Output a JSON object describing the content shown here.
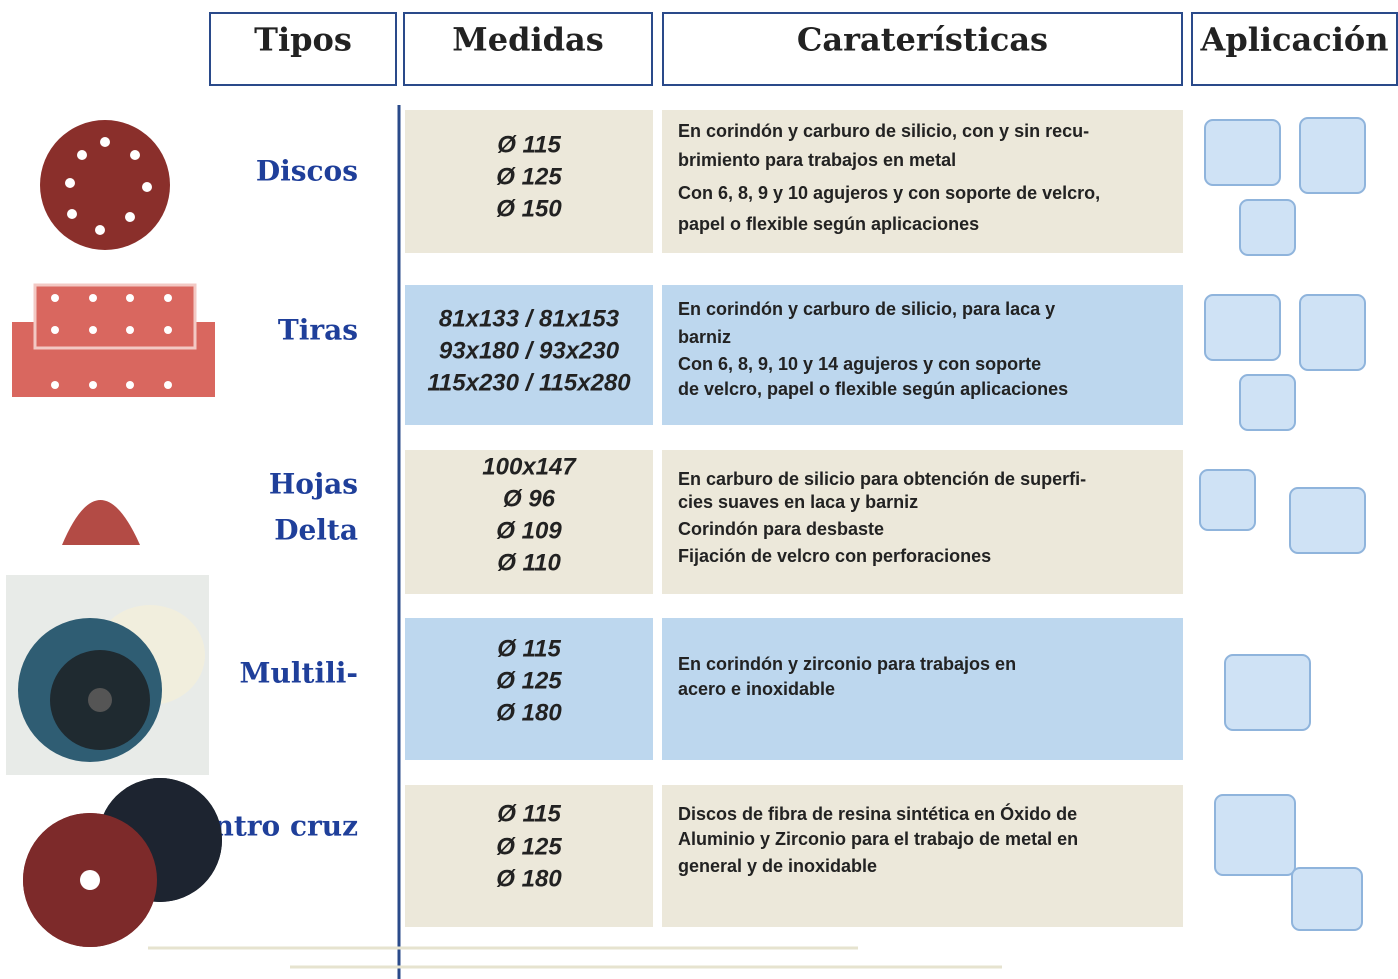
{
  "headers": [
    "Tipos",
    "Medidas",
    "Caraterísticas",
    "Aplicación"
  ],
  "rows": [
    {
      "type": [
        "Discos"
      ],
      "sizes": [
        "Ø 115",
        "Ø 125",
        "Ø 150"
      ],
      "features": [
        "En corindón y carburo de silicio, con y sin recu-",
        "brimiento para trabajos en metal",
        "Con 6, 8, 9 y 10 agujeros  y con soporte de velcro,",
        "papel o flexible según aplicaciones"
      ]
    },
    {
      "type": [
        "Tiras"
      ],
      "sizes": [
        "81x133 / 81x153",
        "93x180 / 93x230",
        "115x230 / 115x280"
      ],
      "features": [
        "En corindón y carburo de silicio, para laca y",
        "barniz",
        "Con 6, 8, 9,  10 y 14 agujeros  y con soporte",
        "de velcro, papel o flexible según aplicaciones"
      ]
    },
    {
      "type": [
        "Hojas",
        "Delta"
      ],
      "sizes": [
        "100x147",
        "Ø 96",
        "Ø 109",
        "Ø 110"
      ],
      "features": [
        "En carburo de silicio para obtención de superfi-",
        "cies suaves en laca y barniz",
        "Corindón para desbaste",
        "Fijación de velcro con perforaciones"
      ]
    },
    {
      "type": [
        "Multili-"
      ],
      "sizes": [
        "Ø 115",
        "Ø 125",
        "Ø 180"
      ],
      "features": [
        "En corindón y zirconio para trabajos en",
        "acero e inoxidable"
      ]
    },
    {
      "type": [
        "Centro cruz"
      ],
      "sizes": [
        "Ø 115",
        "Ø 125",
        "Ø 180"
      ],
      "features": [
        "Discos de fibra de resina sintética en Óxido de",
        "Aluminio y Zirconio para el trabajo de metal en",
        "general y de inoxidable"
      ]
    }
  ]
}
